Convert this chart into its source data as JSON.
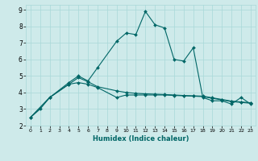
{
  "xlabel": "Humidex (Indice chaleur)",
  "bg_color": "#ceeaea",
  "grid_color": "#a8d8d8",
  "line_color": "#006666",
  "xlim": [
    -0.5,
    23.5
  ],
  "ylim": [
    2.0,
    9.3
  ],
  "xticks": [
    0,
    1,
    2,
    3,
    4,
    5,
    6,
    7,
    8,
    9,
    10,
    11,
    12,
    13,
    14,
    15,
    16,
    17,
    18,
    19,
    20,
    21,
    22,
    23
  ],
  "yticks": [
    2,
    3,
    4,
    5,
    6,
    7,
    8,
    9
  ],
  "series": [
    {
      "x": [
        0,
        1,
        2,
        4,
        5,
        6,
        7,
        9,
        10,
        11,
        12,
        13,
        14,
        15,
        16,
        17,
        18,
        19,
        20,
        21,
        22,
        23
      ],
      "y": [
        2.5,
        3.0,
        3.7,
        4.6,
        5.0,
        4.7,
        5.5,
        7.1,
        7.6,
        7.5,
        8.9,
        8.1,
        7.9,
        6.0,
        5.9,
        6.7,
        3.7,
        3.5,
        3.5,
        3.3,
        3.7,
        3.3
      ]
    },
    {
      "x": [
        0,
        2,
        4,
        5,
        6,
        7,
        9,
        10,
        11,
        12,
        13,
        14,
        15,
        16,
        17,
        18,
        19,
        20,
        21,
        22,
        23
      ],
      "y": [
        2.5,
        3.7,
        4.5,
        4.6,
        4.5,
        4.3,
        3.7,
        3.85,
        3.85,
        3.85,
        3.85,
        3.85,
        3.82,
        3.8,
        3.78,
        3.75,
        3.65,
        3.55,
        3.45,
        3.4,
        3.35
      ]
    },
    {
      "x": [
        0,
        2,
        4,
        5,
        6,
        7,
        9,
        10,
        11,
        12,
        13,
        14,
        15,
        16,
        17,
        18,
        19,
        20,
        21,
        22,
        23
      ],
      "y": [
        2.5,
        3.7,
        4.5,
        4.9,
        4.65,
        4.35,
        4.1,
        4.0,
        3.95,
        3.92,
        3.9,
        3.88,
        3.85,
        3.82,
        3.8,
        3.78,
        3.68,
        3.58,
        3.48,
        3.43,
        3.38
      ]
    }
  ]
}
